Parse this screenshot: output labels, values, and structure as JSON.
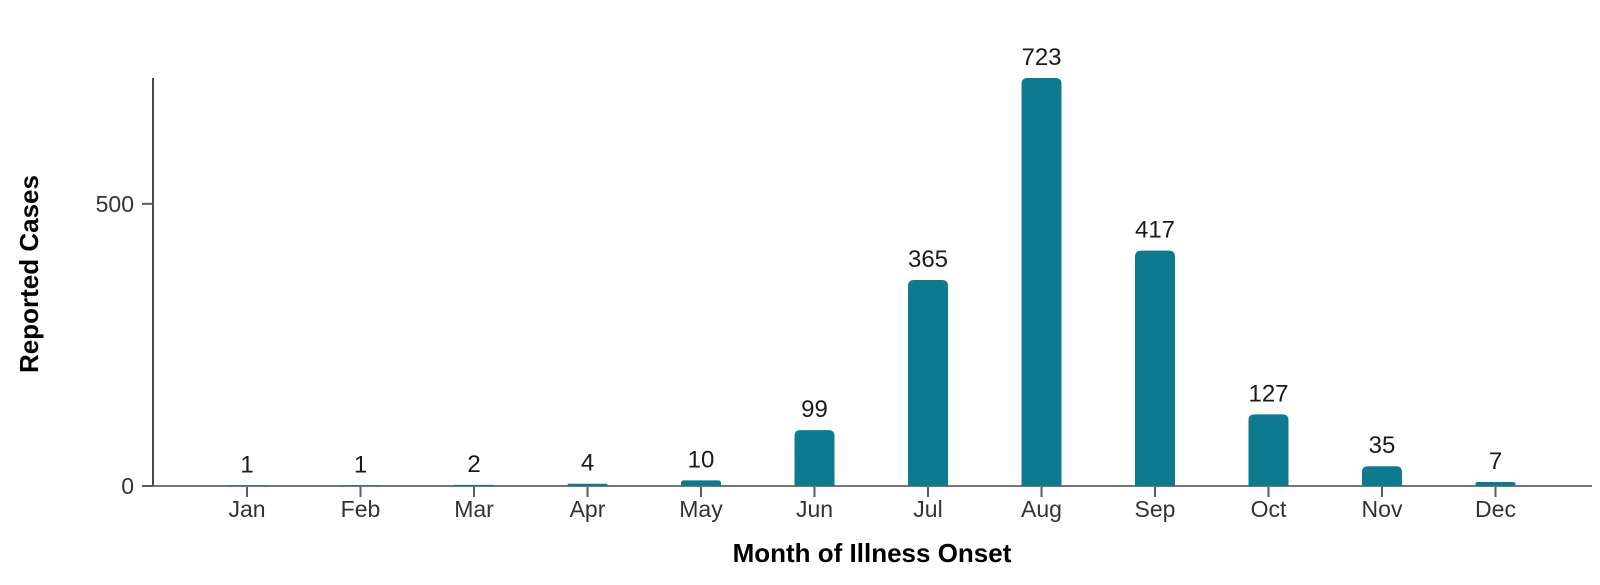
{
  "chart_data": {
    "type": "bar",
    "title": "",
    "categories": [
      "Jan",
      "Feb",
      "Mar",
      "Apr",
      "May",
      "Jun",
      "Jul",
      "Aug",
      "Sep",
      "Oct",
      "Nov",
      "Dec"
    ],
    "values": [
      1,
      1,
      2,
      4,
      10,
      99,
      365,
      723,
      417,
      127,
      35,
      7
    ],
    "xlabel": "Month of Illness Onset",
    "ylabel": "Reported Cases",
    "y_ticks": [
      {
        "value": 0,
        "label": "0"
      },
      {
        "value": 500,
        "label": "500"
      }
    ],
    "ylim": [
      0,
      723
    ],
    "value_labels_shown": true,
    "grid": false,
    "legend": "none",
    "colors": {
      "bar": "#0e7a90",
      "value_label": "#1a1a1a",
      "tick_label": "#333333",
      "axis_title": "#262626",
      "y_axis_line": "#4a4a4a",
      "x_axis_line": "#767676",
      "tick_mark": "#5c5c5c",
      "background": "#ffffff"
    }
  }
}
